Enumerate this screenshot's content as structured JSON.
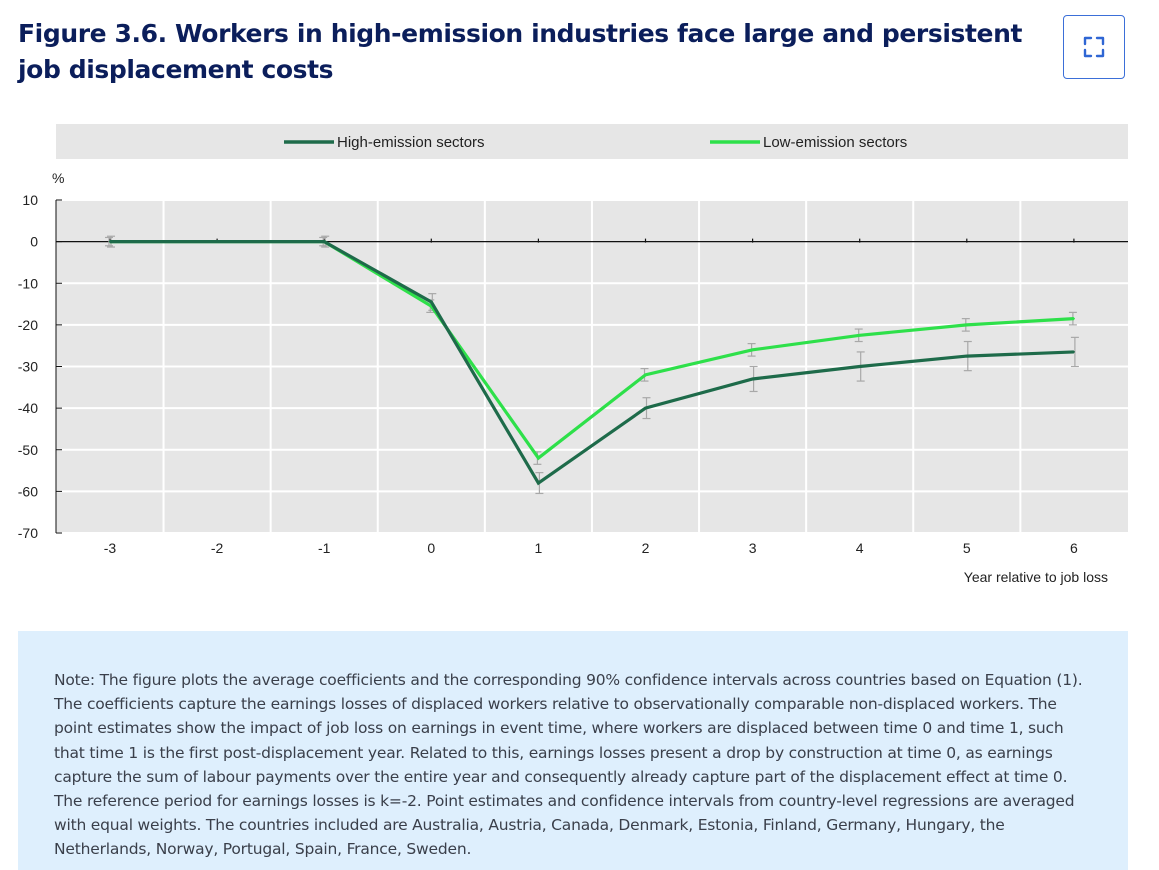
{
  "figure": {
    "title": "Figure 3.6. Workers in high-emission industries face large and persistent job displacement costs",
    "expand_icon": "expand-icon"
  },
  "chart_data": {
    "type": "line",
    "x": [
      -3,
      -2,
      -1,
      0,
      1,
      2,
      3,
      4,
      5,
      6
    ],
    "xlabel": "Year relative to job loss",
    "ylabel": "%",
    "ylim": [
      -70,
      10
    ],
    "yticks": [
      10,
      0,
      -10,
      -20,
      -30,
      -40,
      -50,
      -60,
      -70
    ],
    "grid": true,
    "legend_position": "top",
    "series": [
      {
        "name": "High-emission sectors",
        "color": "#1e6b4a",
        "values": [
          0,
          0,
          0,
          -14.5,
          -58,
          -40,
          -33,
          -30,
          -27.5,
          -26.5
        ],
        "ci_low": [
          -1.3,
          null,
          -1.3,
          -16.5,
          -60.5,
          -42.5,
          -36,
          -33.5,
          -31,
          -30
        ],
        "ci_high": [
          1.3,
          null,
          1.3,
          -12.5,
          -55.5,
          -37.5,
          -30,
          -26.5,
          -24,
          -23
        ]
      },
      {
        "name": "Low-emission sectors",
        "color": "#2ee04a",
        "values": [
          0,
          0,
          0,
          -15.5,
          -52,
          -32,
          -26,
          -22.5,
          -20,
          -18.5
        ],
        "ci_low": [
          -1,
          null,
          -1,
          -17,
          -53.5,
          -33.5,
          -27.5,
          -24,
          -21.5,
          -20
        ],
        "ci_high": [
          1,
          null,
          1,
          -14,
          -50.5,
          -30.5,
          -24.5,
          -21,
          -18.5,
          -17
        ]
      }
    ]
  },
  "note": {
    "text": "Note: The figure plots the average coefficients and the corresponding 90% confidence intervals across countries based on Equation (1). The coefficients capture the earnings losses of displaced workers relative to observationally comparable non-displaced workers. The point estimates show the impact of job loss on earnings in event time, where workers are displaced between time 0 and time 1, such that time 1 is the first post-displacement year. Related to this, earnings losses present a drop by construction at time 0, as earnings capture the sum of labour payments over the entire year and consequently already capture part of the displacement effect at time 0. The reference period for earnings losses is k=-2. Point estimates and confidence intervals from country-level regressions are averaged with equal weights. The countries included are Australia, Austria, Canada, Denmark, Estonia, Finland, Germany, Hungary, the Netherlands, Norway, Portugal, Spain, France, Sweden."
  }
}
